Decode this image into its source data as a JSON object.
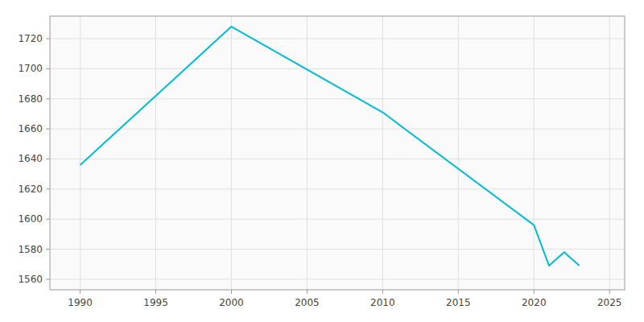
{
  "chart_data": {
    "type": "line",
    "x": [
      1990,
      2000,
      2010,
      2020,
      2021,
      2022,
      2023
    ],
    "values": [
      1636,
      1728,
      1671,
      1596,
      1569,
      1578,
      1569
    ],
    "color": "#00bcd4",
    "xlim": [
      1988,
      2026
    ],
    "ylim": [
      1553,
      1735
    ],
    "xticks": [
      1990,
      1995,
      2000,
      2005,
      2010,
      2015,
      2020,
      2025
    ],
    "yticks": [
      1560,
      1580,
      1600,
      1620,
      1640,
      1660,
      1680,
      1700,
      1720
    ],
    "grid": true
  }
}
